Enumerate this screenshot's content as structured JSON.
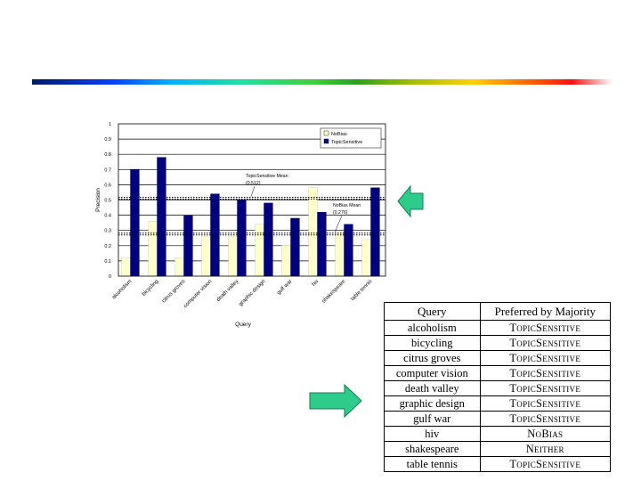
{
  "chart_data": {
    "type": "bar",
    "title": "",
    "xlabel": "Query",
    "ylabel": "Precision",
    "ylim": [
      0,
      1
    ],
    "yticks": [
      "0",
      "0.1",
      "0.2",
      "0.3",
      "0.4",
      "0.5",
      "0.6",
      "0.7",
      "0.8",
      "0.9",
      "1"
    ],
    "categories": [
      "alcoholism",
      "bicycling",
      "citrus groves",
      "computer vision",
      "death valley",
      "graphic design",
      "gulf war",
      "hiv",
      "shakespeare",
      "table tennis"
    ],
    "series": [
      {
        "name": "NoBias",
        "color": "#ffffcc",
        "values": [
          0.12,
          0.36,
          0.12,
          0.26,
          0.26,
          0.34,
          0.2,
          0.58,
          0.28,
          0.24
        ]
      },
      {
        "name": "TopicSensitive",
        "color": "#000080",
        "values": [
          0.7,
          0.78,
          0.4,
          0.54,
          0.5,
          0.48,
          0.38,
          0.42,
          0.34,
          0.58
        ]
      }
    ],
    "mean_lines": [
      {
        "label": "TopicSensitive Mean",
        "value_label": "(0.512)",
        "value": 0.512
      },
      {
        "label": "NoBias Mean",
        "value_label": "(0.276)",
        "value": 0.276
      }
    ],
    "legend": "top-right"
  },
  "table": {
    "headers": [
      "Query",
      "Preferred by Majority"
    ],
    "rows": [
      [
        "alcoholism",
        "TopicSensitive"
      ],
      [
        "bicycling",
        "TopicSensitive"
      ],
      [
        "citrus groves",
        "TopicSensitive"
      ],
      [
        "computer vision",
        "TopicSensitive"
      ],
      [
        "death valley",
        "TopicSensitive"
      ],
      [
        "graphic design",
        "TopicSensitive"
      ],
      [
        "gulf war",
        "TopicSensitive"
      ],
      [
        "hiv",
        "NoBias"
      ],
      [
        "shakespeare",
        "Neither"
      ],
      [
        "table tennis",
        "TopicSensitive"
      ]
    ]
  },
  "arrows": [
    {
      "name": "left-arrow",
      "direction": "left",
      "color": "#2ecc8a"
    },
    {
      "name": "right-arrow",
      "direction": "right",
      "color": "#2ecc8a"
    }
  ]
}
